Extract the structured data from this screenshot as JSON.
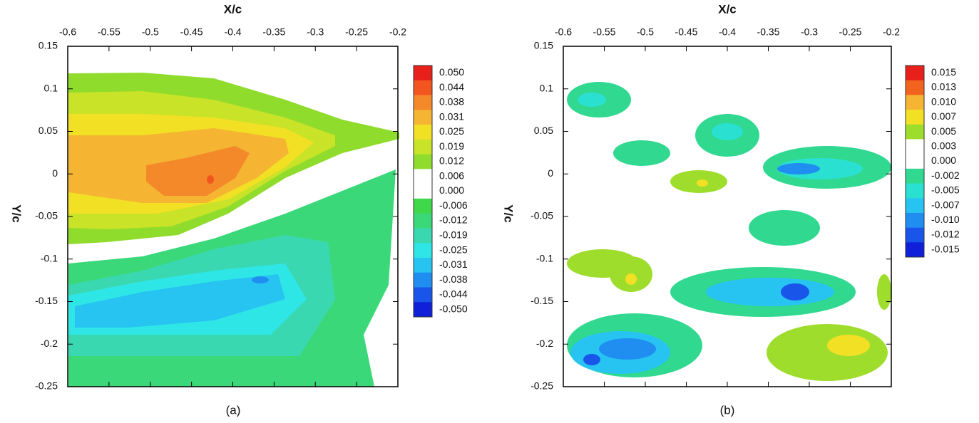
{
  "chart_data": [
    {
      "type": "contour",
      "x_label": "X/c",
      "y_label": "Y/c",
      "caption": "(a)",
      "xlim": [
        -0.6,
        -0.2
      ],
      "xticks": [
        -0.6,
        -0.55,
        -0.5,
        -0.45,
        -0.4,
        -0.35,
        -0.3,
        -0.25,
        -0.2
      ],
      "ylim": [
        -0.25,
        0.15
      ],
      "yticks": [
        0.15,
        0.1,
        0.05,
        0,
        -0.05,
        -0.1,
        -0.15,
        -0.2,
        -0.25
      ],
      "colorbar": {
        "levels": [
          {
            "value": 0.05,
            "label": "0.050"
          },
          {
            "value": 0.044,
            "label": "0.044"
          },
          {
            "value": 0.038,
            "label": "0.038"
          },
          {
            "value": 0.031,
            "label": "0.031"
          },
          {
            "value": 0.025,
            "label": "0.025"
          },
          {
            "value": 0.019,
            "label": "0.019"
          },
          {
            "value": 0.012,
            "label": "0.012"
          },
          {
            "value": 0.006,
            "label": "0.006"
          },
          {
            "value": 0,
            "label": "0.000"
          },
          {
            "value": -0.006,
            "label": "-0.006"
          },
          {
            "value": -0.012,
            "label": "-0.012"
          },
          {
            "value": -0.019,
            "label": "-0.019"
          },
          {
            "value": -0.025,
            "label": "-0.025"
          },
          {
            "value": -0.031,
            "label": "-0.031"
          },
          {
            "value": -0.038,
            "label": "-0.038"
          },
          {
            "value": -0.044,
            "label": "-0.044"
          },
          {
            "value": -0.05,
            "label": "-0.050"
          }
        ],
        "colors": [
          "#e8201c",
          "#f2561e",
          "#f4892a",
          "#f5b532",
          "#f2e025",
          "#c8e328",
          "#8fdc2c",
          "#ffffff",
          "#ffffff",
          "#3ed84a",
          "#3bd87a",
          "#3ad8b0",
          "#2fe6e6",
          "#27c4f2",
          "#1f8ef0",
          "#1a55ea",
          "#1020d8"
        ]
      }
    },
    {
      "type": "contour",
      "x_label": "X/c",
      "y_label": "Y/c",
      "caption": "(b)",
      "xlim": [
        -0.6,
        -0.2
      ],
      "xticks": [
        -0.6,
        -0.55,
        -0.5,
        -0.45,
        -0.4,
        -0.35,
        -0.3,
        -0.25,
        -0.2
      ],
      "ylim": [
        -0.25,
        0.15
      ],
      "yticks": [
        0.15,
        0.1,
        0.05,
        0,
        -0.05,
        -0.1,
        -0.15,
        -0.2,
        -0.25
      ],
      "colorbar": {
        "levels": [
          {
            "value": 0.015,
            "label": "0.015"
          },
          {
            "value": 0.013,
            "label": "0.013"
          },
          {
            "value": 0.01,
            "label": "0.010"
          },
          {
            "value": 0.007,
            "label": "0.007"
          },
          {
            "value": 0.005,
            "label": "0.005"
          },
          {
            "value": 0.003,
            "label": "0.003"
          },
          {
            "value": 0,
            "label": "0.000"
          },
          {
            "value": -0.002,
            "label": "-0.002"
          },
          {
            "value": -0.005,
            "label": "-0.005"
          },
          {
            "value": -0.007,
            "label": "-0.007"
          },
          {
            "value": -0.01,
            "label": "-0.010"
          },
          {
            "value": -0.012,
            "label": "-0.012"
          },
          {
            "value": -0.015,
            "label": "-0.015"
          }
        ],
        "colors": [
          "#e8201c",
          "#f2641e",
          "#f5b532",
          "#f2e025",
          "#9fdd2c",
          "#ffffff",
          "#ffffff",
          "#30d890",
          "#2ae0d0",
          "#27c4f2",
          "#1f8ef0",
          "#1a55ea",
          "#1020d8"
        ]
      }
    }
  ]
}
